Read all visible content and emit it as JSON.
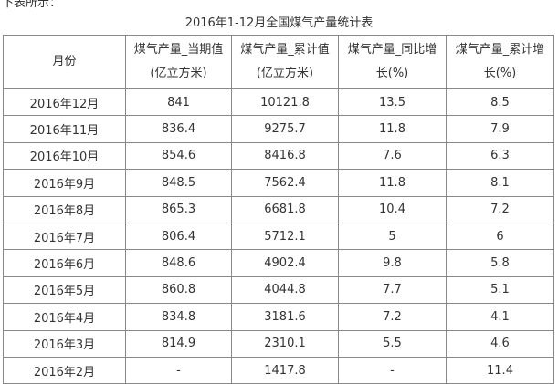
{
  "intro": "下表所示：",
  "title": "2016年1-12月全国煤气产量统计表",
  "table": {
    "header": [
      [
        "月份"
      ],
      [
        "煤气产量_当期值",
        "(亿立方米)"
      ],
      [
        "煤气产量_累计值",
        "(亿立方米)"
      ],
      [
        "煤气产量_同比增",
        "长(%)"
      ],
      [
        "煤气产量_累计增",
        "长(%)"
      ]
    ],
    "rows": [
      [
        "2016年12月",
        "841",
        "10121.8",
        "13.5",
        "8.5"
      ],
      [
        "2016年11月",
        "836.4",
        "9275.7",
        "11.8",
        "7.9"
      ],
      [
        "2016年10月",
        "854.6",
        "8416.8",
        "7.6",
        "6.3"
      ],
      [
        "2016年9月",
        "848.5",
        "7562.4",
        "11.8",
        "8.1"
      ],
      [
        "2016年8月",
        "865.3",
        "6681.8",
        "10.4",
        "7.2"
      ],
      [
        "2016年7月",
        "806.4",
        "5712.1",
        "5",
        "6"
      ],
      [
        "2016年6月",
        "848.6",
        "4902.4",
        "9.8",
        "5.8"
      ],
      [
        "2016年5月",
        "860.8",
        "4044.8",
        "7.7",
        "5.1"
      ],
      [
        "2016年4月",
        "834.8",
        "3181.6",
        "7.2",
        "4.1"
      ],
      [
        "2016年3月",
        "814.9",
        "2310.1",
        "5.5",
        "4.6"
      ],
      [
        "2016年2月",
        "-",
        "1417.8",
        "-",
        "11.4"
      ]
    ]
  }
}
